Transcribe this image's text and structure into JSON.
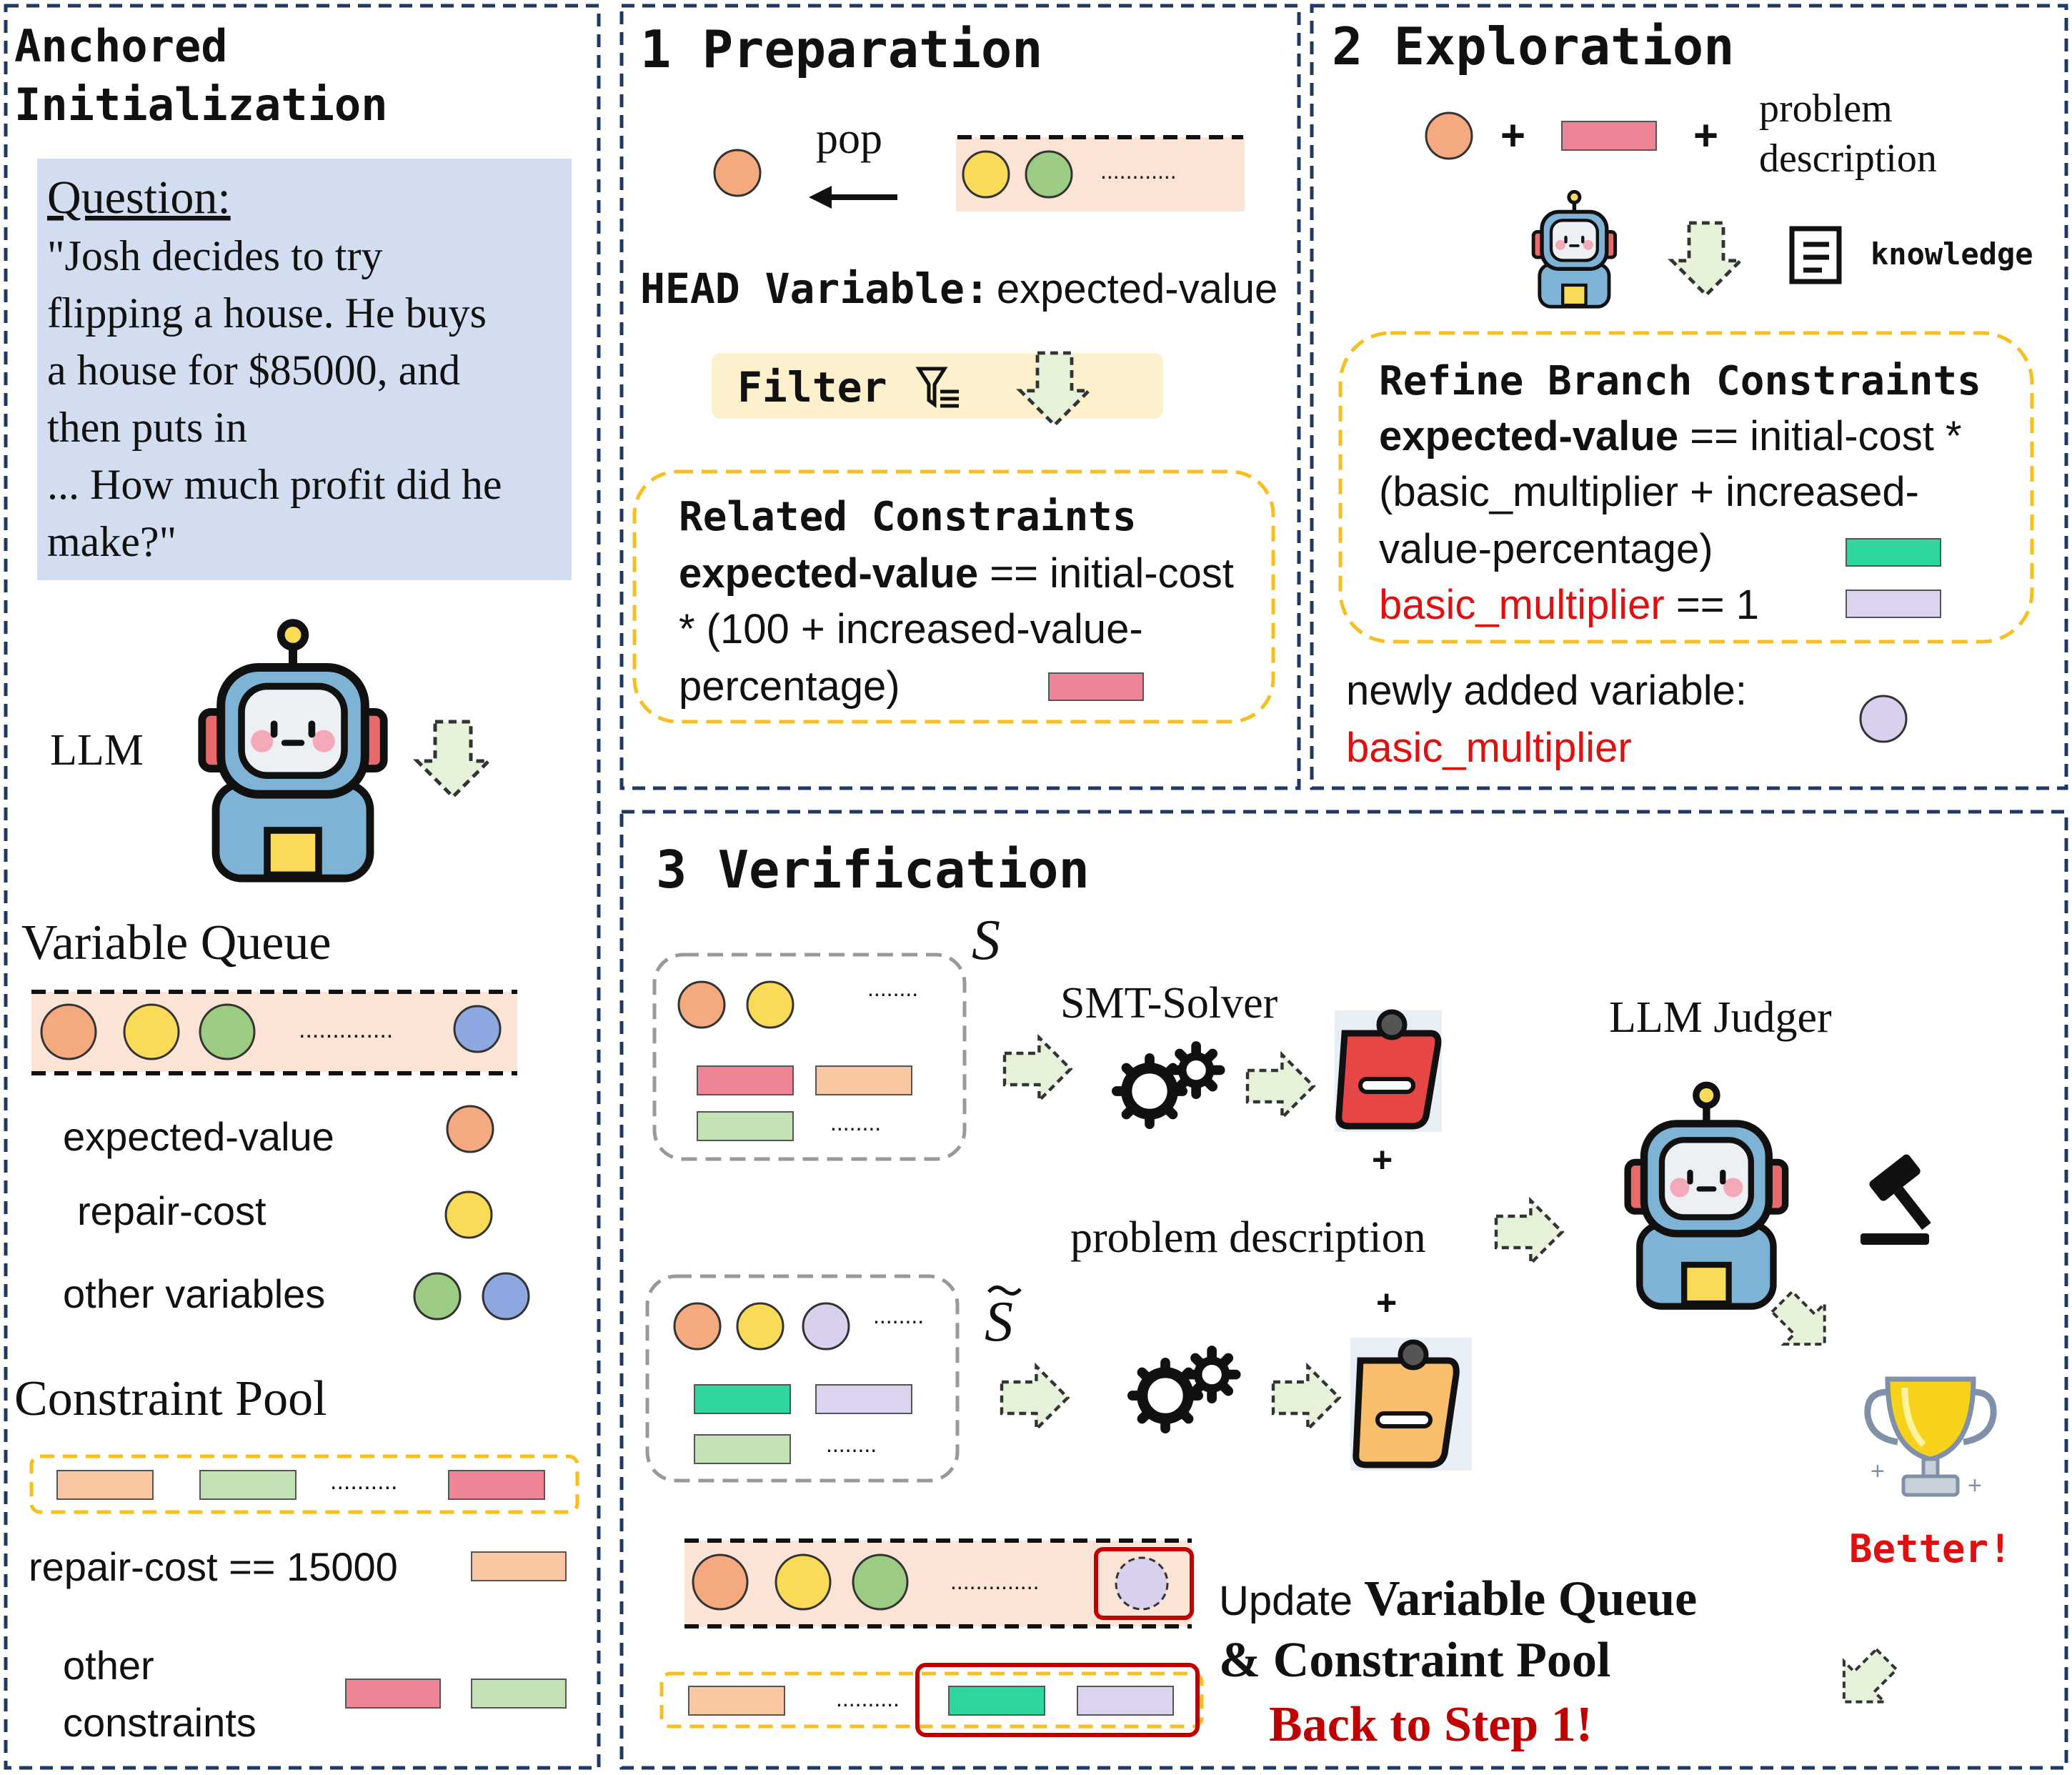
{
  "colors": {
    "orange": "#F4AA7E",
    "yellow": "#F9DB57",
    "green": "#9CCC83",
    "blue": "#8DA8E0",
    "lavender": "#D9D0EE",
    "pink": "#F08497",
    "peach": "#F9C8A3",
    "lightgreen": "#C4E1B3",
    "teal": "#2FD6A0",
    "lightlavender": "#DCD4EE",
    "queue_bg": "#FBE4D6",
    "question_bg": "#D2DEF0",
    "filter_bg": "#FCF1CC",
    "dash_navy": "#1F3864",
    "dash_yellow": "#F6BE1E",
    "red_text": "#E01010",
    "dark_red": "#C00000"
  },
  "panel_anchored": {
    "title_line1": "Anchored",
    "title_line2": "Initialization",
    "question_label": "Question:",
    "question_lines": [
      "\"Josh decides to try",
      "flipping a house. He buys",
      "a house for $85000, and",
      "then puts in",
      "... How much profit did he",
      "make?\""
    ],
    "llm_label": "LLM",
    "variable_queue_title": "Variable Queue",
    "queue_dots": "..............",
    "legend": [
      {
        "label": "expected-value"
      },
      {
        "label": "repair-cost"
      },
      {
        "label": "other variables"
      }
    ],
    "constraint_pool_title": "Constraint Pool",
    "pool_dots": "..........",
    "constraint_1": "repair-cost == 15000",
    "other_constraints_line1": "other",
    "other_constraints_line2": "constraints"
  },
  "panel_preparation": {
    "title": "1 Preparation",
    "pop_label": "pop",
    "queue_dots": "............",
    "head_label": "HEAD Variable:",
    "head_value": "expected-value",
    "filter_label": "Filter",
    "related_title": "Related Constraints",
    "related_bold": "expected-value",
    "related_rest1": " == initial-cost",
    "related_line2": "* (100 + increased-value-",
    "related_line3": "percentage)"
  },
  "panel_exploration": {
    "title": "2 Exploration",
    "plus": "+",
    "problem_line1": "problem",
    "problem_line2": "description",
    "knowledge_label": "knowledge",
    "refine_title": "Refine Branch Constraints",
    "refine_bold": "expected-value",
    "refine_rest1": " == initial-cost *",
    "refine_line2": "(basic_multiplier + increased-",
    "refine_line3": "value-percentage)",
    "refine_red": "basic_multiplier",
    "refine_red_rest": " == 1",
    "newly_label": "newly added variable:",
    "newly_value": "basic_multiplier"
  },
  "panel_verification": {
    "title": "3 Verification",
    "s_symbol": "S",
    "s_tilde_symbol": "S",
    "solver_label": "SMT-Solver",
    "judger_label": "LLM Judger",
    "plus": "+",
    "problem_description": "problem description",
    "better_label": "Better!",
    "update_prefix": "Update ",
    "update_bold": "Variable Queue",
    "update_line2": "& Constraint Pool",
    "back_label": "Back to Step 1!",
    "dots_short": "........",
    "dots_queue": "..............",
    "dots_pool": ".........."
  }
}
